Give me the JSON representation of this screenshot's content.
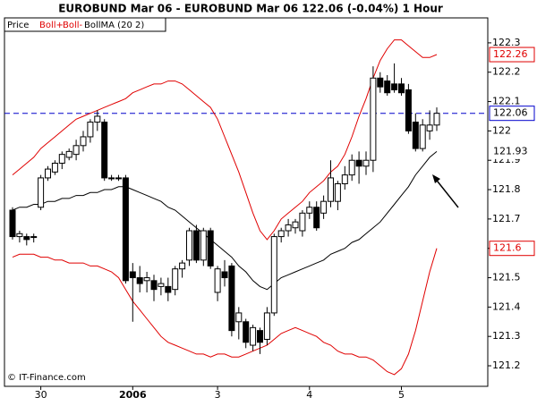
{
  "chart_data": {
    "type": "candlestick",
    "title": "EUROBUND Mar 06 - EUROBUND Mar 06     122.06 (-0.04%)     1 Hour",
    "footer": "© IT-Finance.com",
    "categories": [
      null,
      null,
      null,
      null,
      "30",
      null,
      null,
      null,
      null,
      null,
      null,
      null,
      null,
      null,
      null,
      null,
      null,
      "2006",
      null,
      null,
      null,
      null,
      null,
      null,
      null,
      null,
      null,
      null,
      null,
      "3",
      null,
      null,
      null,
      null,
      null,
      null,
      null,
      null,
      null,
      null,
      null,
      null,
      "4",
      null,
      null,
      null,
      null,
      null,
      null,
      null,
      null,
      null,
      null,
      null,
      null,
      "5",
      null,
      null,
      null,
      null,
      null
    ],
    "ylim": [
      121.13,
      122.385
    ],
    "yticks": [
      121.2,
      121.3,
      121.4,
      121.5,
      121.6,
      121.7,
      121.8,
      121.9,
      122,
      122.1,
      122.2,
      122.3
    ],
    "grid": false,
    "price": {
      "name": "Price",
      "open": [
        121.73,
        121.64,
        121.64,
        121.64,
        121.74,
        121.84,
        121.86,
        121.89,
        121.91,
        121.92,
        121.95,
        121.98,
        122.03,
        122.03,
        121.84,
        121.84,
        121.84,
        121.52,
        121.5,
        121.49,
        121.49,
        121.47,
        121.47,
        121.46,
        121.53,
        121.56,
        121.66,
        121.56,
        121.66,
        121.45,
        121.52,
        121.54,
        121.35,
        121.35,
        121.27,
        121.32,
        121.29,
        121.38,
        121.64,
        121.66,
        121.67,
        121.66,
        121.72,
        121.74,
        121.72,
        121.76,
        121.76,
        121.82,
        121.85,
        121.9,
        121.88,
        121.9,
        122.18,
        122.17,
        122.16,
        122.16,
        122.14,
        122.03,
        121.94,
        122.0,
        122.02
      ],
      "high": [
        121.74,
        121.66,
        121.65,
        121.65,
        121.85,
        121.88,
        121.9,
        121.93,
        121.94,
        121.97,
        122.0,
        122.04,
        122.07,
        122.04,
        121.85,
        121.85,
        121.85,
        121.55,
        121.54,
        121.52,
        121.51,
        121.5,
        121.5,
        121.54,
        121.56,
        121.67,
        121.68,
        121.67,
        121.67,
        121.54,
        121.56,
        121.55,
        121.4,
        121.36,
        121.34,
        121.33,
        121.4,
        121.65,
        121.67,
        121.7,
        121.7,
        121.73,
        121.76,
        121.76,
        121.78,
        121.9,
        121.83,
        121.88,
        121.92,
        121.93,
        121.93,
        122.22,
        122.2,
        122.19,
        122.23,
        122.18,
        122.16,
        122.06,
        122.04,
        122.07,
        122.08
      ],
      "low": [
        121.63,
        121.62,
        121.61,
        121.62,
        121.73,
        121.83,
        121.85,
        121.87,
        121.9,
        121.9,
        121.93,
        121.96,
        122.0,
        121.83,
        121.83,
        121.83,
        121.48,
        121.35,
        121.45,
        121.45,
        121.42,
        121.44,
        121.42,
        121.44,
        121.5,
        121.54,
        121.55,
        121.54,
        121.53,
        121.42,
        121.47,
        121.3,
        121.29,
        121.26,
        121.25,
        121.24,
        121.27,
        121.37,
        121.62,
        121.64,
        121.65,
        121.64,
        121.7,
        121.66,
        121.7,
        121.74,
        121.73,
        121.8,
        121.83,
        121.82,
        121.85,
        121.86,
        122.13,
        122.12,
        122.13,
        122.12,
        121.99,
        121.93,
        121.93,
        121.97,
        122.0
      ],
      "close": [
        121.64,
        121.65,
        121.63,
        121.64,
        121.84,
        121.87,
        121.89,
        121.92,
        121.93,
        121.95,
        121.98,
        122.03,
        122.05,
        121.84,
        121.84,
        121.84,
        121.49,
        121.5,
        121.48,
        121.5,
        121.46,
        121.48,
        121.45,
        121.53,
        121.55,
        121.66,
        121.56,
        121.66,
        121.54,
        121.53,
        121.5,
        121.32,
        121.38,
        121.28,
        121.33,
        121.28,
        121.38,
        121.64,
        121.66,
        121.68,
        121.69,
        121.72,
        121.74,
        121.67,
        121.76,
        121.84,
        121.82,
        121.85,
        121.9,
        121.88,
        121.9,
        122.18,
        122.15,
        122.13,
        122.14,
        122.13,
        122.0,
        121.94,
        122.02,
        122.02,
        122.06
      ]
    },
    "series": [
      {
        "name": "Boll+",
        "color": "#e00000",
        "values": [
          121.85,
          121.87,
          121.89,
          121.91,
          121.94,
          121.96,
          121.98,
          122.0,
          122.02,
          122.04,
          122.05,
          122.06,
          122.07,
          122.08,
          122.09,
          122.1,
          122.11,
          122.13,
          122.14,
          122.15,
          122.16,
          122.16,
          122.17,
          122.17,
          122.16,
          122.14,
          122.12,
          122.1,
          122.08,
          122.04,
          121.98,
          121.92,
          121.86,
          121.79,
          121.72,
          121.66,
          121.63,
          121.66,
          121.7,
          121.72,
          121.74,
          121.76,
          121.79,
          121.81,
          121.83,
          121.86,
          121.88,
          121.92,
          121.98,
          122.05,
          122.11,
          122.18,
          122.24,
          122.28,
          122.31,
          122.31,
          122.29,
          122.27,
          122.25,
          122.25,
          122.26
        ]
      },
      {
        "name": "Boll-",
        "color": "#e00000",
        "values": [
          121.57,
          121.58,
          121.58,
          121.58,
          121.57,
          121.57,
          121.56,
          121.56,
          121.55,
          121.55,
          121.55,
          121.54,
          121.54,
          121.53,
          121.52,
          121.5,
          121.46,
          121.42,
          121.39,
          121.36,
          121.33,
          121.3,
          121.28,
          121.27,
          121.26,
          121.25,
          121.24,
          121.24,
          121.23,
          121.24,
          121.24,
          121.23,
          121.23,
          121.24,
          121.25,
          121.26,
          121.27,
          121.29,
          121.31,
          121.32,
          121.33,
          121.32,
          121.31,
          121.3,
          121.28,
          121.27,
          121.25,
          121.24,
          121.24,
          121.23,
          121.23,
          121.22,
          121.2,
          121.18,
          121.17,
          121.19,
          121.24,
          121.32,
          121.42,
          121.52,
          121.6
        ]
      },
      {
        "name": "BollMA (20 2)",
        "color": "#000000",
        "values": [
          121.73,
          121.74,
          121.74,
          121.75,
          121.75,
          121.76,
          121.76,
          121.77,
          121.77,
          121.78,
          121.78,
          121.79,
          121.79,
          121.8,
          121.8,
          121.81,
          121.81,
          121.8,
          121.79,
          121.78,
          121.77,
          121.76,
          121.74,
          121.73,
          121.71,
          121.69,
          121.67,
          121.65,
          121.63,
          121.61,
          121.59,
          121.57,
          121.54,
          121.52,
          121.49,
          121.47,
          121.46,
          121.48,
          121.5,
          121.51,
          121.52,
          121.53,
          121.54,
          121.55,
          121.56,
          121.58,
          121.59,
          121.6,
          121.62,
          121.63,
          121.65,
          121.67,
          121.69,
          121.72,
          121.75,
          121.78,
          121.81,
          121.85,
          121.88,
          121.91,
          121.93
        ]
      }
    ]
  }
}
